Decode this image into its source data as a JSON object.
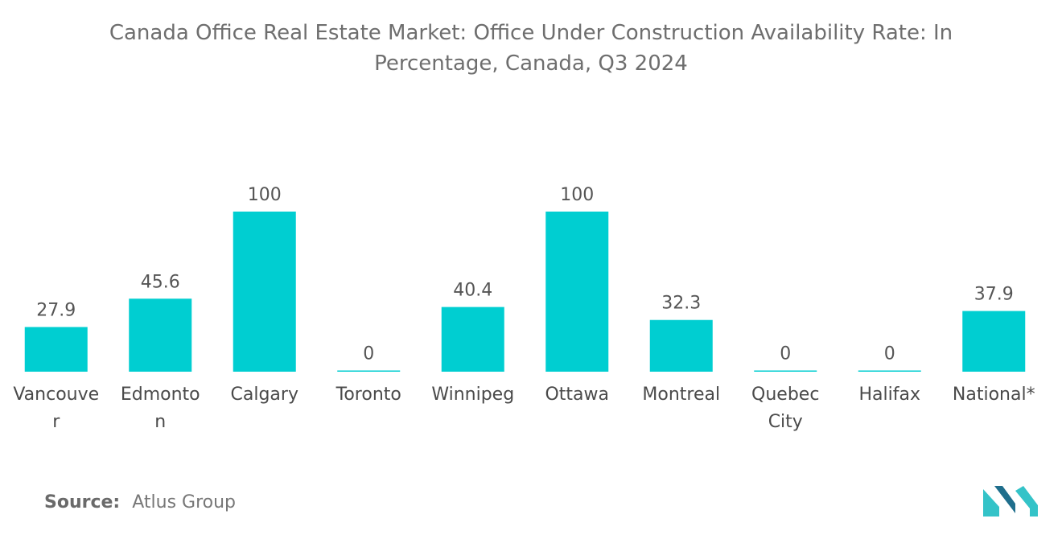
{
  "title": "Canada Office Real Estate Market: Office Under Construction Availability Rate: In Percentage, Canada, Q3 2024",
  "source": {
    "label": "Source:",
    "value": "Atlus Group"
  },
  "colors": {
    "bar": "#00CED1",
    "logo_dark": "#1f6e8c",
    "logo_light": "#34c3c8"
  },
  "chart_data": {
    "type": "bar",
    "title": "Canada Office Real Estate Market: Office Under Construction Availability Rate: In Percentage, Canada, Q3 2024",
    "xlabel": "",
    "ylabel": "",
    "ylim": [
      0,
      100
    ],
    "grid": false,
    "categories": [
      [
        "Vancouve",
        "r"
      ],
      [
        "Edmonto",
        "n"
      ],
      [
        "Calgary"
      ],
      [
        "Toronto"
      ],
      [
        "Winnipeg"
      ],
      [
        "Ottawa"
      ],
      [
        "Montreal"
      ],
      [
        "Quebec",
        "City"
      ],
      [
        "Halifax"
      ],
      [
        "National*"
      ]
    ],
    "values": [
      27.9,
      45.6,
      100,
      0,
      40.4,
      100,
      32.3,
      0,
      0,
      37.9
    ],
    "value_labels": [
      "27.9",
      "45.6",
      "100",
      "0",
      "40.4",
      "100",
      "32.3",
      "0",
      "0",
      "37.9"
    ]
  }
}
